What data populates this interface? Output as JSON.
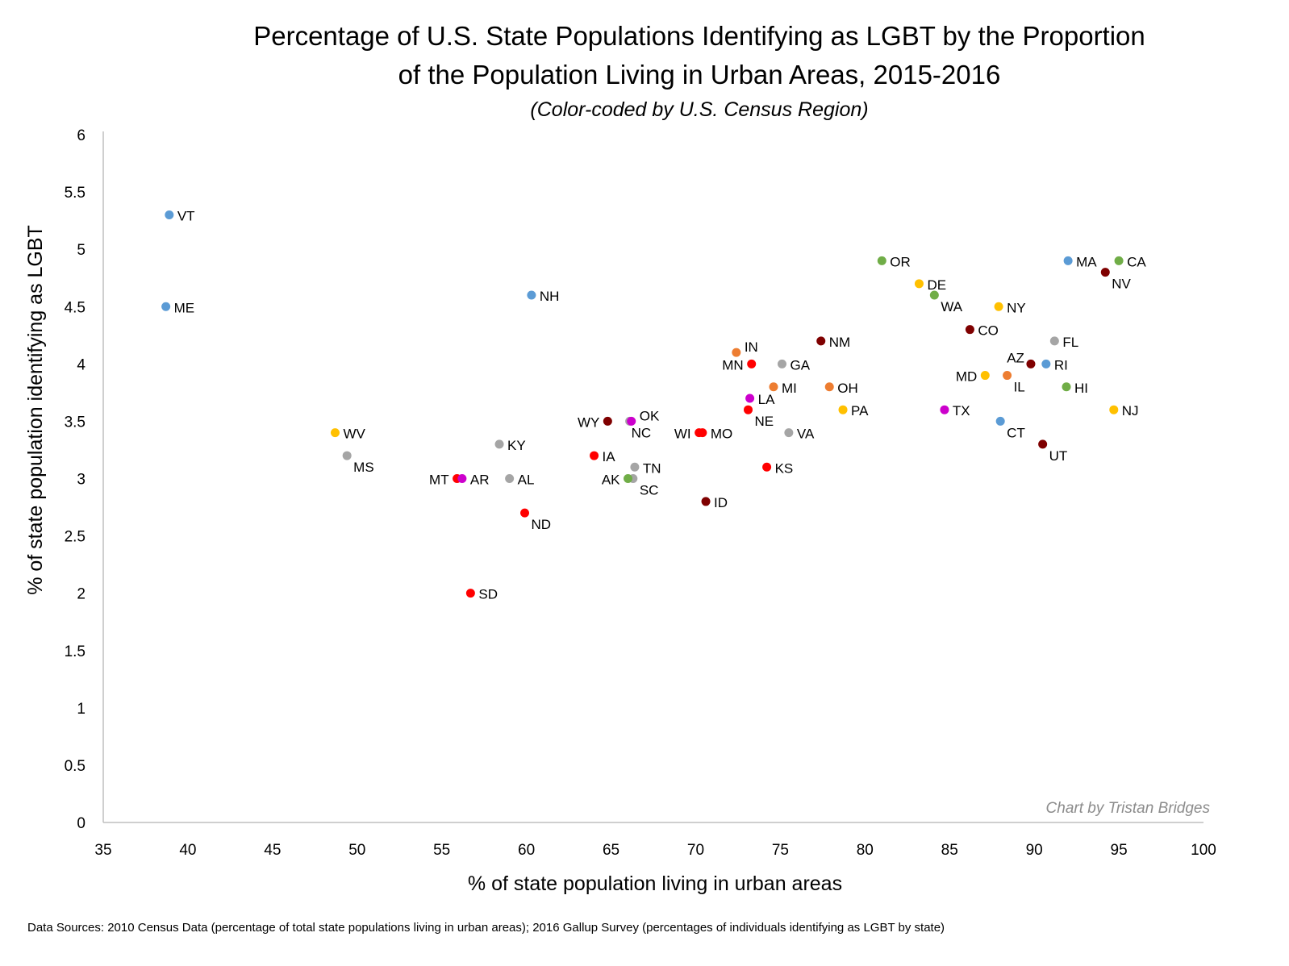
{
  "chart_data": {
    "type": "scatter",
    "title": "Percentage of U.S. State Populations Identifying as LGBT by the Proportion of the Population Living in Urban Areas, 2015-2016",
    "title_lines": [
      "Percentage of U.S. State Populations Identifying as LGBT by the Proportion",
      "of the Population Living in Urban Areas, 2015-2016"
    ],
    "subtitle": "(Color-coded by U.S. Census Region)",
    "xlabel": "% of state population living in urban areas",
    "ylabel": "% of state population identifying as LGBT",
    "xlim": [
      35,
      100
    ],
    "ylim": [
      0,
      6
    ],
    "xticks": [
      35,
      40,
      45,
      50,
      55,
      60,
      65,
      70,
      75,
      80,
      85,
      90,
      95,
      100
    ],
    "yticks": [
      0,
      0.5,
      1,
      1.5,
      2,
      2.5,
      3,
      3.5,
      4,
      4.5,
      5,
      5.5,
      6
    ],
    "grid": false,
    "legend": "none",
    "credit": "Chart by Tristan Bridges",
    "source_note": "Data Sources: 2010 Census Data (percentage of total state populations living in urban areas); 2016 Gallup Survey (percentages of individuals identifying as LGBT by state)",
    "region_colors": {
      "New England": "#5B9BD5",
      "Mid-Atlantic": "#FFC000",
      "East North Central": "#ED7D31",
      "West North Central": "#FF0000",
      "South": "#A5A5A5",
      "West South Central": "#CC00CC",
      "Mountain": "#7F0000",
      "Pacific": "#70AD47"
    },
    "points": [
      {
        "label": "VT",
        "x": 38.9,
        "y": 5.3,
        "region": "New England",
        "pos": "right"
      },
      {
        "label": "ME",
        "x": 38.7,
        "y": 4.5,
        "region": "New England",
        "pos": "right"
      },
      {
        "label": "NH",
        "x": 60.3,
        "y": 4.6,
        "region": "New England",
        "pos": "right"
      },
      {
        "label": "MA",
        "x": 92.0,
        "y": 4.9,
        "region": "New England",
        "pos": "right"
      },
      {
        "label": "RI",
        "x": 90.7,
        "y": 4.0,
        "region": "New England",
        "pos": "right"
      },
      {
        "label": "CT",
        "x": 88.0,
        "y": 3.5,
        "region": "New England",
        "pos": "right-below"
      },
      {
        "label": "NY",
        "x": 87.9,
        "y": 4.5,
        "region": "Mid-Atlantic",
        "pos": "right"
      },
      {
        "label": "NJ",
        "x": 94.7,
        "y": 3.6,
        "region": "Mid-Atlantic",
        "pos": "right"
      },
      {
        "label": "PA",
        "x": 78.7,
        "y": 3.6,
        "region": "Mid-Atlantic",
        "pos": "right"
      },
      {
        "label": "DE",
        "x": 83.2,
        "y": 4.7,
        "region": "Mid-Atlantic",
        "pos": "right"
      },
      {
        "label": "MD",
        "x": 87.1,
        "y": 3.9,
        "region": "Mid-Atlantic",
        "pos": "left"
      },
      {
        "label": "WV",
        "x": 48.7,
        "y": 3.4,
        "region": "Mid-Atlantic",
        "pos": "right"
      },
      {
        "label": "IN",
        "x": 72.4,
        "y": 4.1,
        "region": "East North Central",
        "pos": "right-above"
      },
      {
        "label": "MI",
        "x": 74.6,
        "y": 3.8,
        "region": "East North Central",
        "pos": "right"
      },
      {
        "label": "OH",
        "x": 77.9,
        "y": 3.8,
        "region": "East North Central",
        "pos": "right"
      },
      {
        "label": "IL",
        "x": 88.4,
        "y": 3.9,
        "region": "East North Central",
        "pos": "right-below"
      },
      {
        "label": "WI",
        "x": 70.2,
        "y": 3.4,
        "region": "West North Central",
        "pos": "left"
      },
      {
        "label": "MN",
        "x": 73.3,
        "y": 4.0,
        "region": "West North Central",
        "pos": "left"
      },
      {
        "label": "IA",
        "x": 64.0,
        "y": 3.2,
        "region": "West North Central",
        "pos": "right"
      },
      {
        "label": "MO",
        "x": 70.4,
        "y": 3.4,
        "region": "West North Central",
        "pos": "right"
      },
      {
        "label": "ND",
        "x": 59.9,
        "y": 2.7,
        "region": "West North Central",
        "pos": "right-below"
      },
      {
        "label": "SD",
        "x": 56.7,
        "y": 2.0,
        "region": "West North Central",
        "pos": "right"
      },
      {
        "label": "NE",
        "x": 73.1,
        "y": 3.6,
        "region": "West North Central",
        "pos": "right-below"
      },
      {
        "label": "KS",
        "x": 74.2,
        "y": 3.1,
        "region": "West North Central",
        "pos": "right"
      },
      {
        "label": "MT",
        "x": 55.9,
        "y": 3.0,
        "region": "West North Central",
        "pos": "left"
      },
      {
        "label": "KY",
        "x": 58.4,
        "y": 3.3,
        "region": "South",
        "pos": "right"
      },
      {
        "label": "MS",
        "x": 49.4,
        "y": 3.2,
        "region": "South",
        "pos": "right-below"
      },
      {
        "label": "AL",
        "x": 59.0,
        "y": 3.0,
        "region": "South",
        "pos": "right"
      },
      {
        "label": "TN",
        "x": 66.4,
        "y": 3.1,
        "region": "South",
        "pos": "right"
      },
      {
        "label": "SC",
        "x": 66.3,
        "y": 3.0,
        "region": "South",
        "pos": "right-below"
      },
      {
        "label": "NC",
        "x": 66.1,
        "y": 3.5,
        "region": "South",
        "pos": "below"
      },
      {
        "label": "GA",
        "x": 75.1,
        "y": 4.0,
        "region": "South",
        "pos": "right"
      },
      {
        "label": "VA",
        "x": 75.5,
        "y": 3.4,
        "region": "South",
        "pos": "right"
      },
      {
        "label": "FL",
        "x": 91.2,
        "y": 4.2,
        "region": "South",
        "pos": "right"
      },
      {
        "label": "AR",
        "x": 56.2,
        "y": 3.0,
        "region": "West South Central",
        "pos": "right"
      },
      {
        "label": "OK",
        "x": 66.2,
        "y": 3.5,
        "region": "West South Central",
        "pos": "right-above"
      },
      {
        "label": "LA",
        "x": 73.2,
        "y": 3.7,
        "region": "West South Central",
        "pos": "right"
      },
      {
        "label": "TX",
        "x": 84.7,
        "y": 3.6,
        "region": "West South Central",
        "pos": "right"
      },
      {
        "label": "WY",
        "x": 64.8,
        "y": 3.5,
        "region": "Mountain",
        "pos": "left"
      },
      {
        "label": "ID",
        "x": 70.6,
        "y": 2.8,
        "region": "Mountain",
        "pos": "right"
      },
      {
        "label": "NM",
        "x": 77.4,
        "y": 4.2,
        "region": "Mountain",
        "pos": "right"
      },
      {
        "label": "CO",
        "x": 86.2,
        "y": 4.3,
        "region": "Mountain",
        "pos": "right"
      },
      {
        "label": "AZ",
        "x": 89.8,
        "y": 4.0,
        "region": "Mountain",
        "pos": "left-above"
      },
      {
        "label": "UT",
        "x": 90.5,
        "y": 3.3,
        "region": "Mountain",
        "pos": "right-below"
      },
      {
        "label": "NV",
        "x": 94.2,
        "y": 4.8,
        "region": "Mountain",
        "pos": "right-below"
      },
      {
        "label": "OR",
        "x": 81.0,
        "y": 4.9,
        "region": "Pacific",
        "pos": "right"
      },
      {
        "label": "WA",
        "x": 84.1,
        "y": 4.6,
        "region": "Pacific",
        "pos": "right-below"
      },
      {
        "label": "CA",
        "x": 95.0,
        "y": 4.9,
        "region": "Pacific",
        "pos": "right"
      },
      {
        "label": "HI",
        "x": 91.9,
        "y": 3.8,
        "region": "Pacific",
        "pos": "right"
      },
      {
        "label": "AK",
        "x": 66.0,
        "y": 3.0,
        "region": "Pacific",
        "pos": "left"
      }
    ]
  }
}
